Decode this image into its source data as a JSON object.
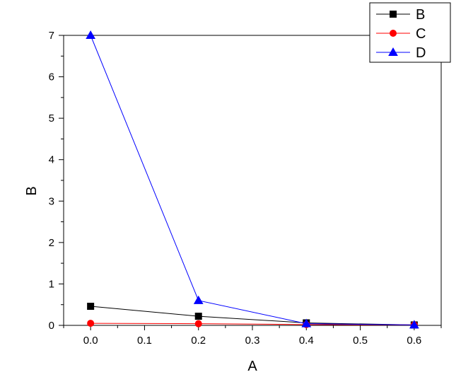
{
  "chart_data": {
    "type": "line",
    "xlabel": "A",
    "ylabel": "B",
    "xlim": [
      -0.05,
      0.65
    ],
    "ylim": [
      0,
      7
    ],
    "x_ticks": [
      0.0,
      0.1,
      0.2,
      0.3,
      0.4,
      0.5,
      0.6
    ],
    "x_tick_labels": [
      "0.0",
      "0.1",
      "0.2",
      "0.3",
      "0.4",
      "0.5",
      "0.6"
    ],
    "y_ticks": [
      0,
      1,
      2,
      3,
      4,
      5,
      6,
      7
    ],
    "y_tick_labels": [
      "0",
      "1",
      "2",
      "3",
      "4",
      "5",
      "6",
      "7"
    ],
    "grid": false,
    "legend_position": "top-right",
    "series": [
      {
        "name": "B",
        "color": "#000000",
        "marker": "square",
        "x": [
          0.0,
          0.2,
          0.4,
          0.6
        ],
        "y": [
          0.46,
          0.22,
          0.06,
          0.01
        ]
      },
      {
        "name": "C",
        "color": "#ff0000",
        "marker": "circle",
        "x": [
          0.0,
          0.2,
          0.4,
          0.6
        ],
        "y": [
          0.05,
          0.04,
          0.02,
          0.01
        ]
      },
      {
        "name": "D",
        "color": "#0000ff",
        "marker": "triangle",
        "x": [
          0.0,
          0.2,
          0.4,
          0.6
        ],
        "y": [
          7.0,
          0.6,
          0.04,
          0.01
        ]
      }
    ]
  }
}
